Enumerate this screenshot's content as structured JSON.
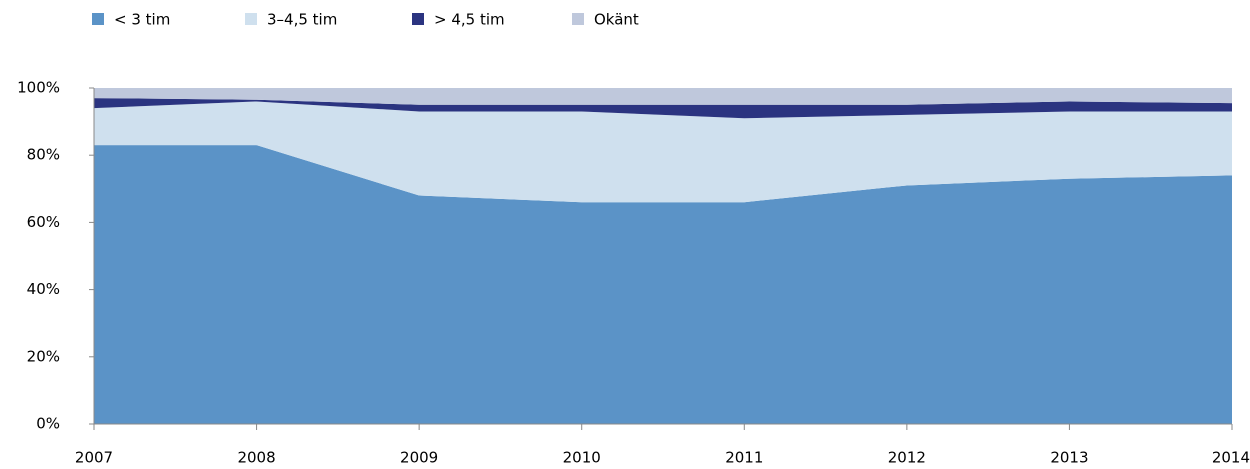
{
  "chart_data": {
    "type": "stacked_area",
    "x": [
      2007,
      2008,
      2009,
      2010,
      2011,
      2012,
      2013,
      2014
    ],
    "series": [
      {
        "name": "< 3 tim",
        "color": "#5b93c7",
        "values": [
          83,
          83,
          68,
          66,
          66,
          71,
          73,
          74
        ]
      },
      {
        "name": "3–4,5 tim",
        "color": "#cfe0ee",
        "values": [
          11,
          13,
          25,
          27,
          25,
          21,
          20,
          19
        ]
      },
      {
        "name": "> 4,5 tim",
        "color": "#2b3480",
        "values": [
          3,
          0.5,
          2,
          2,
          4,
          3,
          3,
          2.5
        ]
      },
      {
        "name": "Okänt",
        "color": "#bfc8dc",
        "values": [
          3,
          3.5,
          5,
          5,
          5,
          5,
          4,
          4.5
        ]
      }
    ],
    "xlim": [
      2007,
      2014
    ],
    "xticks": [
      2007,
      2008,
      2009,
      2010,
      2011,
      2012,
      2013,
      2014
    ],
    "ylim": [
      0,
      100
    ],
    "yticks": [
      {
        "value": 0,
        "label": "0%"
      },
      {
        "value": 20,
        "label": "20%"
      },
      {
        "value": 40,
        "label": "40%"
      },
      {
        "value": 60,
        "label": "60%"
      },
      {
        "value": 80,
        "label": "80%"
      },
      {
        "value": 100,
        "label": "100%"
      }
    ],
    "legend": "top-left",
    "grid": false
  }
}
